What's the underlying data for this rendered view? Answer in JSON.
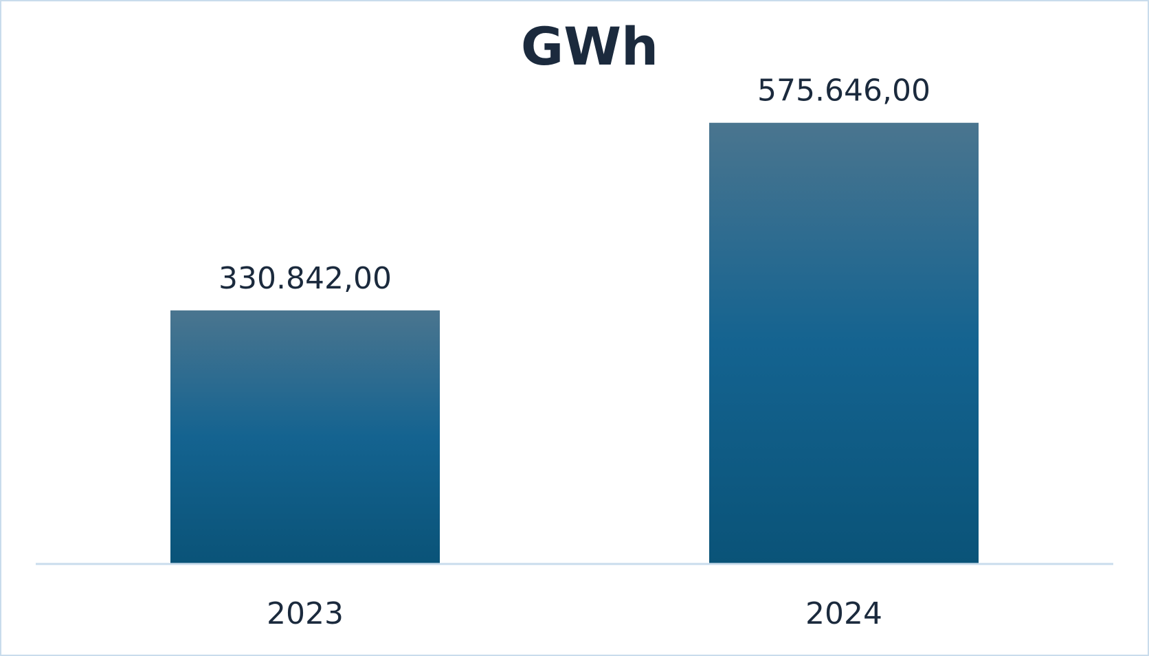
{
  "chart_data": {
    "type": "bar",
    "title": "GWh",
    "categories": [
      "2023",
      "2024"
    ],
    "values": [
      330842.0,
      575646.0
    ],
    "data_labels": [
      "330.842,00",
      "575.646,00"
    ],
    "xlabel": "",
    "ylabel": "",
    "ylim": [
      0,
      700000
    ],
    "grid": false,
    "legend": "none",
    "colors": {
      "bar_top": "#4a758f",
      "bar_mid": "#146390",
      "bar_bottom": "#0a5378",
      "axis": "#c9dcec",
      "text": "#1b2a3d"
    }
  }
}
